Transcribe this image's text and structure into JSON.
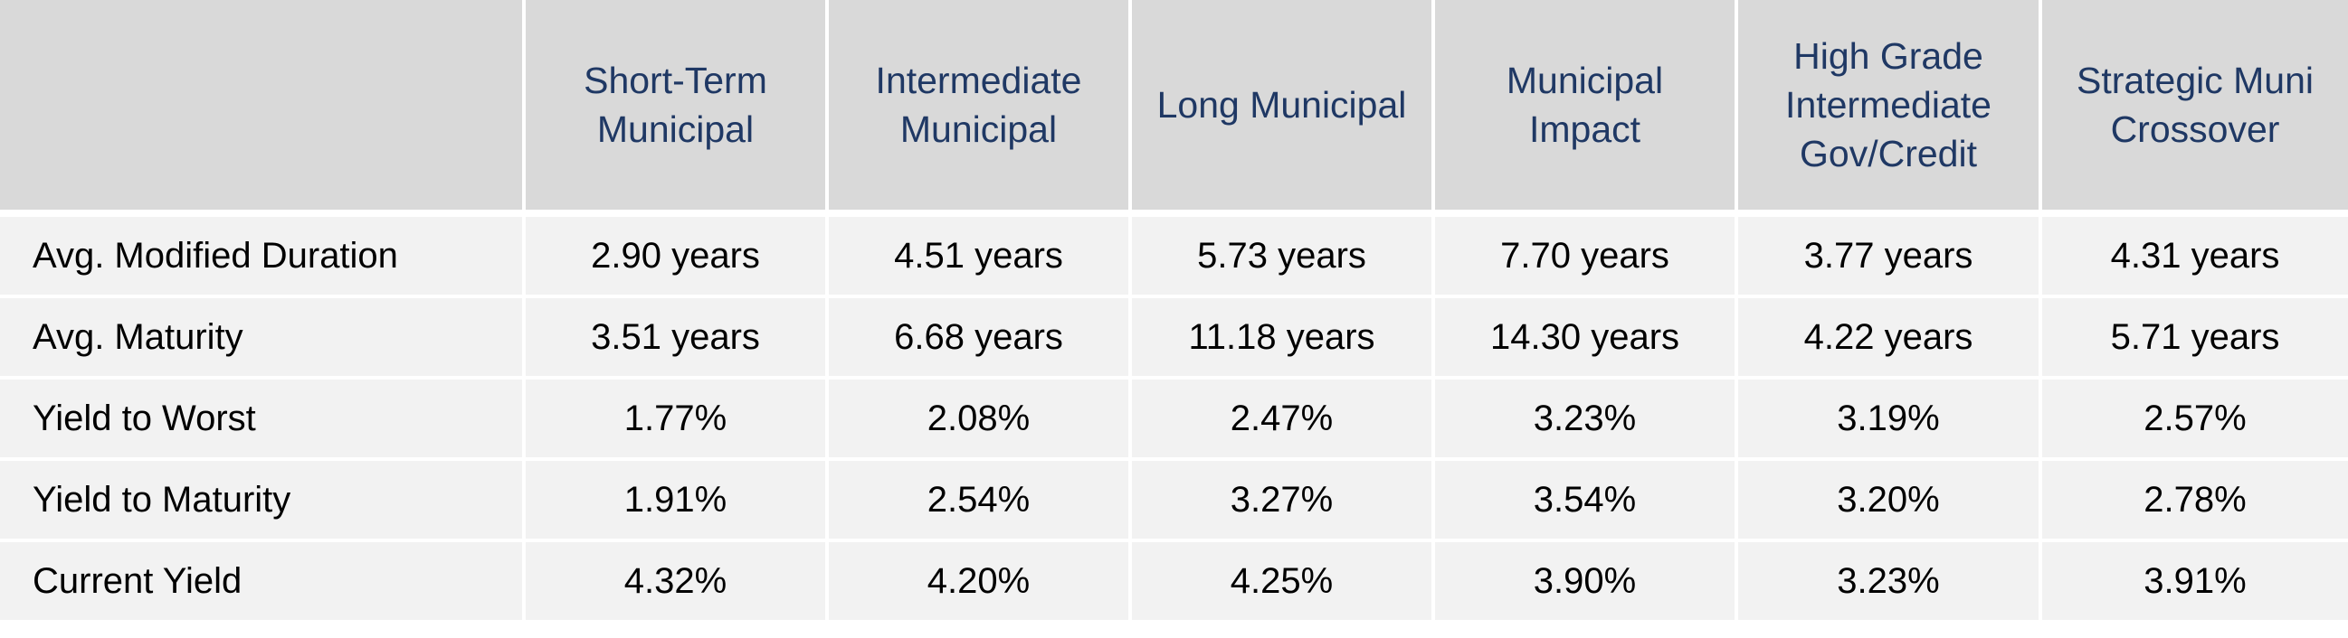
{
  "table": {
    "corner": "",
    "columns": [
      "Short-Term Municipal",
      "Intermediate Municipal",
      "Long Municipal",
      "Municipal Impact",
      "High Grade Intermediate Gov/Credit",
      "Strategic Muni Crossover"
    ],
    "rows": [
      {
        "label": "Avg. Modified Duration",
        "values": [
          "2.90 years",
          "4.51 years",
          "5.73 years",
          "7.70 years",
          "3.77 years",
          "4.31 years"
        ]
      },
      {
        "label": "Avg. Maturity",
        "values": [
          "3.51 years",
          "6.68 years",
          "11.18 years",
          "14.30 years",
          "4.22 years",
          "5.71 years"
        ]
      },
      {
        "label": "Yield to Worst",
        "values": [
          "1.77%",
          "2.08%",
          "2.47%",
          "3.23%",
          "3.19%",
          "2.57%"
        ]
      },
      {
        "label": "Yield to Maturity",
        "values": [
          "1.91%",
          "2.54%",
          "3.27%",
          "3.54%",
          "3.20%",
          "2.78%"
        ]
      },
      {
        "label": "Current Yield",
        "values": [
          "4.32%",
          "4.20%",
          "4.25%",
          "3.90%",
          "3.23%",
          "3.91%"
        ]
      }
    ]
  },
  "colors": {
    "header_bg": "#d9d9d9",
    "header_text": "#1f3864",
    "body_bg": "#f2f2f2",
    "body_text": "#000000",
    "grid_lines": "#ffffff"
  }
}
